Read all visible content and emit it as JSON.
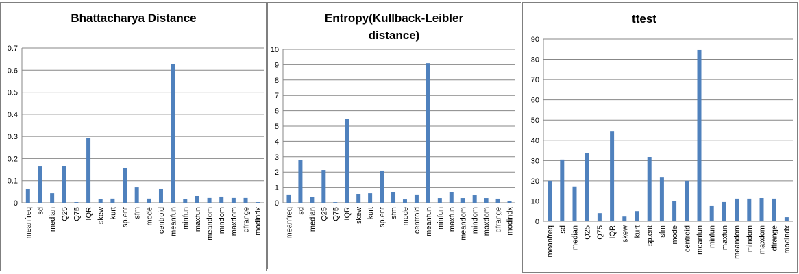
{
  "chart_data": [
    {
      "type": "bar",
      "title": "Bhattacharya Distance",
      "categories": [
        "meanfreq",
        "sd",
        "median",
        "Q25",
        "Q75",
        "IQR",
        "skew",
        "kurt",
        "sp.ent",
        "sfm",
        "mode",
        "centroid",
        "meanfun",
        "minfun",
        "maxfun",
        "meandom",
        "mindom",
        "maxdom",
        "dfrange",
        "modindx"
      ],
      "values": [
        0.062,
        0.164,
        0.043,
        0.167,
        0.003,
        0.294,
        0.016,
        0.019,
        0.158,
        0.071,
        0.019,
        0.062,
        0.628,
        0.016,
        0.031,
        0.022,
        0.028,
        0.022,
        0.022,
        0.003
      ],
      "color": "#4f81bd",
      "ylim": [
        0,
        0.7
      ],
      "yticks": [
        0,
        0.1,
        0.2,
        0.3,
        0.4,
        0.5,
        0.6,
        0.7
      ],
      "grid": true
    },
    {
      "type": "bar",
      "title": "Entropy(Kullback-Leibler distance)",
      "categories": [
        "meanfreq",
        "sd",
        "median",
        "Q25",
        "Q75",
        "IQR",
        "skew",
        "kurt",
        "sp.ent",
        "sfm",
        "mode",
        "centroid",
        "meanfun",
        "minfun",
        "maxfun",
        "meandom",
        "mindom",
        "maxdom",
        "dfrange",
        "modindx"
      ],
      "values": [
        0.54,
        2.8,
        0.4,
        2.14,
        0.04,
        5.45,
        0.58,
        0.62,
        2.1,
        0.67,
        0.22,
        0.54,
        9.1,
        0.31,
        0.71,
        0.31,
        0.49,
        0.31,
        0.27,
        0.09
      ],
      "color": "#4f81bd",
      "ylim": [
        0,
        10
      ],
      "yticks": [
        0,
        1,
        2,
        3,
        4,
        5,
        6,
        7,
        8,
        9,
        10
      ],
      "grid": true
    },
    {
      "type": "bar",
      "title": "ttest",
      "categories": [
        "meanfreq",
        "sd",
        "median",
        "Q25",
        "Q75",
        "IQR",
        "skew",
        "kurt",
        "sp.ent",
        "sfm",
        "mode",
        "centroid",
        "meanfun",
        "minfun",
        "maxfun",
        "meandom",
        "mindom",
        "maxdom",
        "dfrange",
        "modindx"
      ],
      "values": [
        20,
        30.5,
        17,
        33.5,
        4,
        44.6,
        2.3,
        5,
        31.8,
        21.6,
        10,
        20,
        84.6,
        7.8,
        9.5,
        11.2,
        11.2,
        11.5,
        11.2,
        2
      ],
      "color": "#4f81bd",
      "ylim": [
        0,
        90
      ],
      "yticks": [
        0,
        10,
        20,
        30,
        40,
        50,
        60,
        70,
        80,
        90
      ],
      "grid": true
    }
  ]
}
